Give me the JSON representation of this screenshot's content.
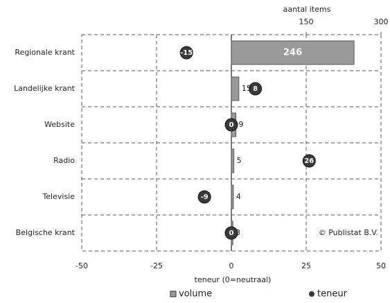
{
  "chart_data": {
    "type": "bar",
    "categories": [
      "Regionale krant",
      "Landelijke krant",
      "Website",
      "Radio",
      "Televisie",
      "Belgische krant"
    ],
    "series": [
      {
        "name": "volume",
        "color": "#9a9a9a",
        "axis": "x2",
        "values": [
          246,
          15,
          9,
          5,
          4,
          3
        ]
      },
      {
        "name": "teneur",
        "type": "scatter",
        "color": "#3a3a3a",
        "values": [
          -15,
          8,
          0,
          26,
          -9,
          0
        ]
      }
    ],
    "xlim": [
      -50,
      50
    ],
    "xticks": [
      -50,
      -25,
      0,
      25,
      50
    ],
    "xlabel": "teneur (0=neutraal)",
    "x2lim": [
      -300,
      300
    ],
    "x2ticks": [
      150,
      300
    ],
    "x2label": "aantal items",
    "annotation": "© Publistat B.V.",
    "grid": true,
    "legend": "bottom"
  }
}
